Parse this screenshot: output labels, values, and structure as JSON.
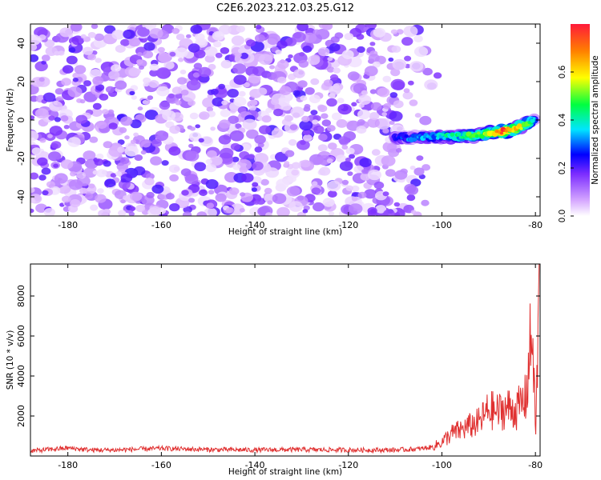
{
  "title": "C2E6.2023.212.03.25.G12",
  "colors": {
    "snr_line": "#e03030",
    "spectrogram_noise": "#8a2be2",
    "axis": "#000000"
  },
  "chart_data": [
    {
      "type": "heatmap",
      "name": "spectrogram",
      "xlabel": "Height of straight line (km)",
      "ylabel": "Frequency (Hz)",
      "xlim": [
        -188,
        -79
      ],
      "ylim": [
        -50,
        50
      ],
      "xticks": [
        -180,
        -160,
        -140,
        -120,
        -100,
        -80
      ],
      "yticks": [
        -40,
        -20,
        0,
        20,
        40
      ],
      "colorbar": {
        "label": "Normalized spectral amplitude",
        "range": [
          0,
          0.8
        ],
        "ticks": [
          0.0,
          0.2,
          0.4,
          0.6
        ],
        "colormap": [
          "#ffffff",
          "#8a2be2",
          "#0000ff",
          "#00ffff",
          "#00ff00",
          "#ffff00",
          "#ff0000"
        ]
      },
      "signal_track": [
        {
          "x": -110,
          "y": -9.5,
          "amp": 0.25
        },
        {
          "x": -105,
          "y": -9.0,
          "amp": 0.3
        },
        {
          "x": -100,
          "y": -8.5,
          "amp": 0.35
        },
        {
          "x": -95,
          "y": -8.5,
          "amp": 0.45
        },
        {
          "x": -90,
          "y": -7.0,
          "amp": 0.55
        },
        {
          "x": -87,
          "y": -6.0,
          "amp": 0.75
        },
        {
          "x": -84,
          "y": -4.5,
          "amp": 0.6
        },
        {
          "x": -80,
          "y": 0.5,
          "amp": 0.35
        }
      ],
      "noise_floor_amp": 0.1,
      "noise_x_range": [
        -188,
        -100
      ]
    },
    {
      "type": "line",
      "name": "snr",
      "xlabel": "Height of straight line (km)",
      "ylabel": "SNR (10 * v/v)",
      "xlim": [
        -188,
        -79
      ],
      "ylim": [
        0,
        9600
      ],
      "xticks": [
        -180,
        -160,
        -140,
        -120,
        -100,
        -80
      ],
      "yticks": [
        2000,
        4000,
        6000,
        8000
      ],
      "series": [
        {
          "x": [
            -188,
            -180,
            -175,
            -170,
            -160,
            -150,
            -140,
            -130,
            -120,
            -110,
            -105,
            -102,
            -100,
            -98,
            -96,
            -94,
            -92,
            -90,
            -88,
            -86,
            -84,
            -82,
            -81,
            -80.5,
            -80,
            -79.5,
            -79.2
          ],
          "y": [
            250,
            400,
            300,
            300,
            380,
            320,
            300,
            320,
            300,
            300,
            350,
            450,
            700,
            1100,
            1300,
            1500,
            1700,
            2300,
            2200,
            2400,
            2300,
            2900,
            5700,
            6000,
            900,
            5000,
            9400
          ]
        }
      ]
    }
  ]
}
